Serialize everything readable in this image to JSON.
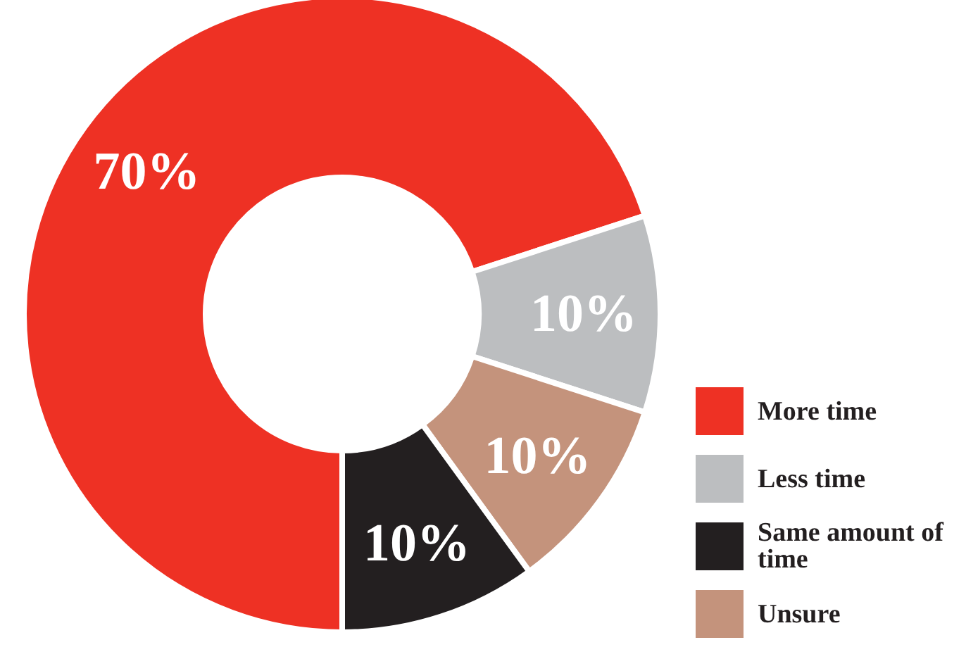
{
  "chart_data": {
    "type": "donut",
    "categories": [
      "More time",
      "Less time",
      "Unsure",
      "Same amount of time"
    ],
    "values": [
      70,
      10,
      10,
      10
    ],
    "colors": [
      "#ee3124",
      "#bcbec0",
      "#c4937c",
      "#231f20"
    ],
    "value_labels": [
      "70%",
      "10%",
      "10%",
      "10%"
    ],
    "legend": "right"
  }
}
